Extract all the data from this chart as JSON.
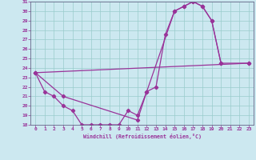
{
  "xlabel": "Windchill (Refroidissement éolien,°C)",
  "xlim": [
    -0.5,
    23.5
  ],
  "ylim": [
    18,
    31
  ],
  "xticks": [
    0,
    1,
    2,
    3,
    4,
    5,
    6,
    7,
    8,
    9,
    10,
    11,
    12,
    13,
    14,
    15,
    16,
    17,
    18,
    19,
    20,
    21,
    22,
    23
  ],
  "yticks": [
    18,
    19,
    20,
    21,
    22,
    23,
    24,
    25,
    26,
    27,
    28,
    29,
    30,
    31
  ],
  "background_color": "#cce8f0",
  "line_color": "#993399",
  "grid_color": "#99cccc",
  "curves": [
    {
      "x": [
        0,
        1,
        2,
        3,
        4,
        5,
        6,
        7,
        8,
        9,
        10,
        11,
        12,
        13,
        14,
        15,
        16,
        17,
        18,
        19,
        20
      ],
      "y": [
        23.5,
        21.5,
        21.0,
        20.0,
        19.5,
        18.0,
        18.0,
        18.0,
        18.0,
        18.0,
        19.5,
        19.0,
        21.5,
        22.0,
        27.5,
        30.0,
        30.5,
        31.0,
        30.5,
        29.0,
        24.5
      ]
    },
    {
      "x": [
        0,
        23
      ],
      "y": [
        23.5,
        24.5
      ]
    },
    {
      "x": [
        0,
        3,
        11,
        12,
        15,
        16,
        17,
        18,
        19,
        20,
        23
      ],
      "y": [
        23.5,
        21.0,
        18.5,
        21.5,
        30.0,
        30.5,
        31.0,
        30.5,
        29.0,
        24.5,
        24.5
      ]
    }
  ]
}
